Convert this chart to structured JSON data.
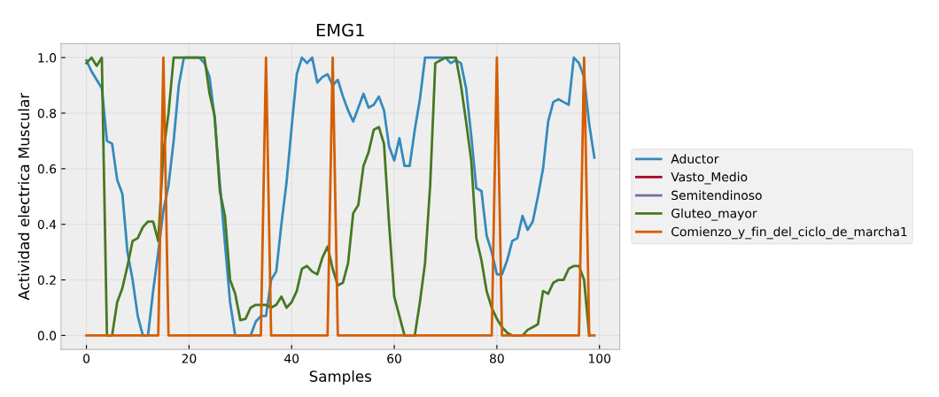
{
  "chart_data": {
    "type": "line",
    "title": "EMG1",
    "xlabel": "Samples",
    "ylabel": "Actividad electrica Muscular",
    "x": [
      0,
      1,
      2,
      3,
      4,
      5,
      6,
      7,
      8,
      9,
      10,
      11,
      12,
      13,
      14,
      15,
      16,
      17,
      18,
      19,
      20,
      21,
      22,
      23,
      24,
      25,
      26,
      27,
      28,
      29,
      30,
      31,
      32,
      33,
      34,
      35,
      36,
      37,
      38,
      39,
      40,
      41,
      42,
      43,
      44,
      45,
      46,
      47,
      48,
      49,
      50,
      51,
      52,
      53,
      54,
      55,
      56,
      57,
      58,
      59,
      60,
      61,
      62,
      63,
      64,
      65,
      66,
      67,
      68,
      69,
      70,
      71,
      72,
      73,
      74,
      75,
      76,
      77,
      78,
      79,
      80,
      81,
      82,
      83,
      84,
      85,
      86,
      87,
      88,
      89,
      90,
      91,
      92,
      93,
      94,
      95,
      96,
      97,
      98,
      99
    ],
    "series": [
      {
        "name": "Aductor",
        "color": "#348abd",
        "values": [
          0.99,
          0.95,
          0.92,
          0.89,
          0.7,
          0.69,
          0.56,
          0.51,
          0.3,
          0.2,
          0.07,
          0.0,
          0.0,
          0.16,
          0.3,
          0.45,
          0.54,
          0.7,
          0.9,
          1.0,
          1.0,
          1.0,
          1.0,
          0.98,
          0.93,
          0.78,
          0.55,
          0.33,
          0.12,
          0.0,
          0.0,
          0.0,
          0.0,
          0.05,
          0.07,
          0.07,
          0.2,
          0.23,
          0.4,
          0.55,
          0.75,
          0.94,
          1.0,
          0.98,
          1.0,
          0.91,
          0.93,
          0.94,
          0.9,
          0.92,
          0.86,
          0.81,
          0.77,
          0.82,
          0.87,
          0.82,
          0.83,
          0.86,
          0.81,
          0.68,
          0.63,
          0.71,
          0.61,
          0.61,
          0.74,
          0.85,
          1.0,
          1.0,
          1.0,
          1.0,
          1.0,
          0.98,
          0.99,
          0.98,
          0.89,
          0.72,
          0.53,
          0.52,
          0.36,
          0.3,
          0.22,
          0.22,
          0.27,
          0.34,
          0.35,
          0.43,
          0.38,
          0.41,
          0.5,
          0.6,
          0.77,
          0.84,
          0.85,
          0.84,
          0.83,
          1.0,
          0.98,
          0.93,
          0.76,
          0.64
        ]
      },
      {
        "name": "Vasto_Medio",
        "color": "#a60628",
        "values": [
          null,
          null,
          null,
          null,
          null,
          null,
          null,
          null,
          null,
          null,
          null,
          null,
          null,
          null,
          null,
          null,
          null,
          null,
          null,
          null,
          null,
          null,
          null,
          null,
          null,
          null,
          null,
          null,
          null,
          null,
          null,
          null,
          null,
          null,
          null,
          null,
          null,
          null,
          null,
          null,
          null,
          null,
          null,
          null,
          null,
          null,
          null,
          null,
          null,
          null,
          null,
          null,
          null,
          null,
          null,
          null,
          null,
          null,
          null,
          null,
          null,
          null,
          null,
          null,
          null,
          null,
          null,
          null,
          null,
          null,
          null,
          null,
          null,
          null,
          null,
          null,
          null,
          null,
          null,
          null,
          null,
          null,
          null,
          null,
          null,
          null,
          null,
          null,
          null,
          null,
          null,
          null,
          null,
          null,
          null,
          null,
          null,
          null,
          null,
          null
        ]
      },
      {
        "name": "Semitendinoso",
        "color": "#7a68a6",
        "values": [
          null,
          null,
          null,
          null,
          null,
          null,
          null,
          null,
          null,
          null,
          null,
          null,
          null,
          null,
          null,
          null,
          null,
          null,
          null,
          null,
          null,
          null,
          null,
          null,
          null,
          null,
          null,
          null,
          null,
          null,
          null,
          null,
          null,
          null,
          null,
          null,
          null,
          null,
          null,
          null,
          null,
          null,
          null,
          null,
          null,
          null,
          null,
          null,
          null,
          null,
          null,
          null,
          null,
          null,
          null,
          null,
          null,
          null,
          null,
          null,
          null,
          null,
          null,
          null,
          null,
          null,
          null,
          null,
          null,
          null,
          null,
          null,
          null,
          null,
          null,
          null,
          null,
          null,
          null,
          null,
          null,
          null,
          null,
          null,
          null,
          null,
          null,
          null,
          null,
          null,
          null,
          null,
          null,
          null,
          null,
          null,
          null,
          null,
          null,
          null
        ]
      },
      {
        "name": "Gluteo_mayor",
        "color": "#467821",
        "values": [
          0.98,
          1.0,
          0.97,
          1.0,
          0.0,
          0.0,
          0.12,
          0.17,
          0.25,
          0.34,
          0.35,
          0.39,
          0.41,
          0.41,
          0.34,
          0.66,
          0.8,
          1.0,
          1.0,
          1.0,
          1.0,
          1.0,
          1.0,
          1.0,
          0.87,
          0.79,
          0.52,
          0.43,
          0.2,
          0.15,
          0.055,
          0.06,
          0.1,
          0.11,
          0.11,
          0.11,
          0.1,
          0.11,
          0.14,
          0.1,
          0.12,
          0.16,
          0.24,
          0.25,
          0.23,
          0.22,
          0.28,
          0.32,
          0.24,
          0.18,
          0.19,
          0.26,
          0.44,
          0.47,
          0.61,
          0.66,
          0.74,
          0.75,
          0.69,
          0.4,
          0.14,
          0.07,
          0.0,
          0.0,
          0.0,
          0.12,
          0.26,
          0.54,
          0.98,
          0.99,
          1.0,
          1.0,
          1.0,
          0.9,
          0.77,
          0.63,
          0.35,
          0.27,
          0.16,
          0.1,
          0.06,
          0.03,
          0.01,
          0.0,
          0.0,
          0.0,
          0.02,
          0.03,
          0.04,
          0.16,
          0.15,
          0.19,
          0.2,
          0.2,
          0.24,
          0.25,
          0.25,
          0.2,
          0.0,
          null
        ]
      },
      {
        "name": "Comienzo_y_fin_del_ciclo_de_marcha1",
        "color": "#d55e00",
        "values": [
          0,
          0,
          0,
          0,
          0,
          0,
          0,
          0,
          0,
          0,
          0,
          0,
          0,
          0,
          0,
          1,
          0,
          0,
          0,
          0,
          0,
          0,
          0,
          0,
          0,
          0,
          0,
          0,
          0,
          0,
          0,
          0,
          0,
          0,
          0,
          1,
          0,
          0,
          0,
          0,
          0,
          0,
          0,
          0,
          0,
          0,
          0,
          0,
          1,
          0,
          0,
          0,
          0,
          0,
          0,
          0,
          0,
          0,
          0,
          0,
          0,
          0,
          0,
          0,
          0,
          0,
          0,
          0,
          0,
          0,
          0,
          0,
          0,
          0,
          0,
          0,
          0,
          0,
          0,
          0,
          1,
          0,
          0,
          0,
          0,
          0,
          0,
          0,
          0,
          0,
          0,
          0,
          0,
          0,
          0,
          0,
          0,
          1,
          0,
          0
        ]
      }
    ],
    "xlim": [
      -4.95,
      103.95
    ],
    "ylim": [
      -0.05,
      1.05
    ],
    "xticks": [
      0,
      20,
      40,
      60,
      80,
      100
    ],
    "yticks": [
      {
        "value": 0,
        "label": "0.0"
      },
      {
        "value": 0.2,
        "label": "0.2"
      },
      {
        "value": 0.4,
        "label": "0.4"
      },
      {
        "value": 0.6,
        "label": "0.6"
      },
      {
        "value": 0.8,
        "label": "0.8"
      },
      {
        "value": 1.0,
        "label": "1.0"
      }
    ],
    "grid": true,
    "legend": "right",
    "marker": "none",
    "line_style": "solid"
  }
}
